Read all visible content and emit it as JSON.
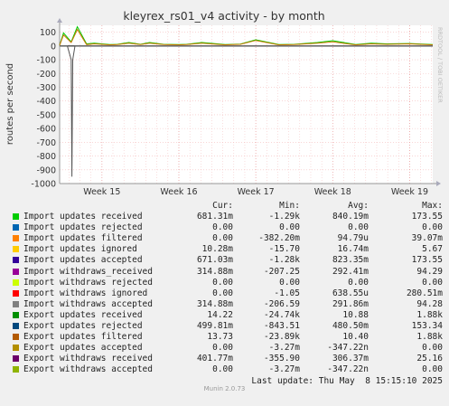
{
  "chart_data": {
    "type": "line",
    "title": "kleyrex_rs01_v4 activity - by month",
    "ylabel": "routes per second",
    "ylim": [
      -1000,
      150
    ],
    "yticks": [
      100,
      0,
      -100,
      -200,
      -300,
      -400,
      -500,
      -600,
      -700,
      -800,
      -900,
      -1000
    ],
    "ytick_labels": [
      "100",
      "0",
      "-100",
      "-200",
      "-300",
      "-400",
      "-500",
      "-600",
      "-700",
      "-800",
      "-900",
      "-1000"
    ],
    "xlim": [
      14.45,
      19.3
    ],
    "xticks": [
      15,
      16,
      17,
      18,
      19
    ],
    "xtick_labels": [
      "Week 15",
      "Week 16",
      "Week 17",
      "Week 18",
      "Week 19"
    ],
    "grid": true,
    "series": [
      {
        "name": "Import updates received",
        "color": "#00cc00",
        "x": [
          14.45,
          14.5,
          14.6,
          14.68,
          14.8,
          14.9,
          15.0,
          15.1,
          15.2,
          15.35,
          15.5,
          15.62,
          15.8,
          16.0,
          16.1,
          16.3,
          16.5,
          16.6,
          16.8,
          17.0,
          17.3,
          17.5,
          17.8,
          18.0,
          18.3,
          18.5,
          18.7,
          19.0,
          19.3
        ],
        "values": [
          5,
          95,
          30,
          140,
          15,
          20,
          15,
          10,
          12,
          25,
          12,
          25,
          12,
          10,
          12,
          25,
          15,
          10,
          14,
          45,
          10,
          12,
          25,
          38,
          10,
          20,
          15,
          18,
          10
        ]
      },
      {
        "name": "Export updates received",
        "color": "#cc7700",
        "x": [
          14.45,
          14.5,
          14.6,
          14.68,
          14.8,
          14.9,
          15.0,
          15.1,
          15.2,
          15.35,
          15.5,
          15.62,
          15.8,
          16.0,
          16.1,
          16.3,
          16.5,
          16.6,
          16.8,
          17.0,
          17.3,
          17.5,
          17.8,
          18.0,
          18.3,
          18.5,
          18.7,
          19.0,
          19.3
        ],
        "values": [
          4,
          80,
          25,
          120,
          10,
          15,
          12,
          8,
          10,
          20,
          10,
          20,
          10,
          8,
          10,
          20,
          12,
          8,
          12,
          40,
          8,
          10,
          20,
          30,
          8,
          15,
          12,
          15,
          8
        ]
      },
      {
        "name": "Export updates rejected",
        "color": "#555555",
        "x": [
          14.45,
          14.55,
          14.6,
          14.61,
          14.62,
          14.65,
          15.0,
          16.0,
          17.0,
          18.0,
          19.0,
          19.3
        ],
        "values": [
          0,
          0,
          -100,
          -950,
          -100,
          0,
          0,
          0,
          0,
          0,
          0,
          0
        ]
      }
    ]
  },
  "watermark": "RRDTOOL / TOBI OETIKER",
  "legend": {
    "headers": [
      "Cur:",
      "Min:",
      "Avg:",
      "Max:"
    ],
    "rows": [
      {
        "name": "Import updates received",
        "color": "#00cc00",
        "cur": "681.31m",
        "min": "-1.29k",
        "avg": "840.19m",
        "max": "173.55"
      },
      {
        "name": "Import updates rejected",
        "color": "#0066b3",
        "cur": "0.00",
        "min": "0.00",
        "avg": "0.00",
        "max": "0.00"
      },
      {
        "name": "Import updates filtered",
        "color": "#ff8000",
        "cur": "0.00",
        "min": "-382.20m",
        "avg": "94.79u",
        "max": "39.07m"
      },
      {
        "name": "Import updates ignored",
        "color": "#ffcc00",
        "cur": "10.28m",
        "min": "-15.70",
        "avg": "16.74m",
        "max": "5.67"
      },
      {
        "name": "Import updates accepted",
        "color": "#330099",
        "cur": "671.03m",
        "min": "-1.28k",
        "avg": "823.35m",
        "max": "173.55"
      },
      {
        "name": "Import withdraws_received",
        "color": "#990099",
        "cur": "314.88m",
        "min": "-207.25",
        "avg": "292.41m",
        "max": "94.29"
      },
      {
        "name": "Import withdraws rejected",
        "color": "#ccff00",
        "cur": "0.00",
        "min": "0.00",
        "avg": "0.00",
        "max": "0.00"
      },
      {
        "name": "Import withdraws ignored",
        "color": "#ff0000",
        "cur": "0.00",
        "min": "-1.05",
        "avg": "638.55u",
        "max": "280.51m"
      },
      {
        "name": "Import withdraws accepted",
        "color": "#808080",
        "cur": "314.88m",
        "min": "-206.59",
        "avg": "291.86m",
        "max": "94.28"
      },
      {
        "name": "Export updates received",
        "color": "#008f00",
        "cur": "14.22",
        "min": "-24.74k",
        "avg": "10.88",
        "max": "1.88k"
      },
      {
        "name": "Export updates rejected",
        "color": "#00487d",
        "cur": "499.81m",
        "min": "-843.51",
        "avg": "480.50m",
        "max": "153.34"
      },
      {
        "name": "Export updates filtered",
        "color": "#b35a00",
        "cur": "13.73",
        "min": "-23.89k",
        "avg": "10.40",
        "max": "1.88k"
      },
      {
        "name": "Export updates accepted",
        "color": "#b38f00",
        "cur": "0.00",
        "min": "-3.27m",
        "avg": "-347.22n",
        "max": "0.00"
      },
      {
        "name": "Export withdraws received",
        "color": "#6b006b",
        "cur": "401.77m",
        "min": "-355.90",
        "avg": "306.37m",
        "max": "25.16"
      },
      {
        "name": "Export withdraws accepted",
        "color": "#8fb300",
        "cur": "0.00",
        "min": "-3.27m",
        "avg": "-347.22n",
        "max": "0.00"
      }
    ],
    "last_update": "Last update: Thu May  8 15:15:10 2025"
  },
  "footer": "Munin 2.0.73"
}
